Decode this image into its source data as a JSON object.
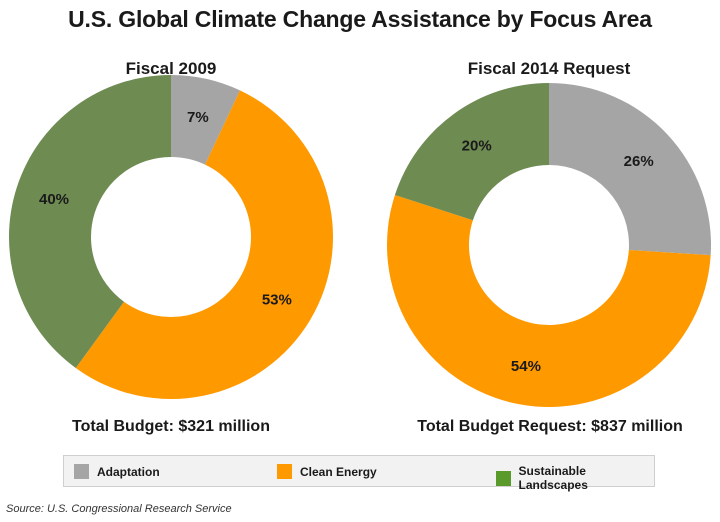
{
  "title": "U.S. Global Climate Change Assistance by Focus Area",
  "colors": {
    "Adaptation": "#a5a5a5",
    "Clean Energy": "#ff9900",
    "Sustainable Landscapes": "#6e8b52",
    "legend_Sustainable Landscapes": "#5a9a2a"
  },
  "chart_data": [
    {
      "type": "pie",
      "donut": true,
      "title": "Fiscal 2009",
      "categories": [
        "Adaptation",
        "Clean Energy",
        "Sustainable Landscapes"
      ],
      "values": [
        7,
        53,
        40
      ],
      "labels": [
        "7%",
        "53%",
        "40%"
      ],
      "annotation": "Total Budget: $321 million"
    },
    {
      "type": "pie",
      "donut": true,
      "title": "Fiscal 2014 Request",
      "categories": [
        "Adaptation",
        "Clean Energy",
        "Sustainable Landscapes"
      ],
      "values": [
        26,
        54,
        20
      ],
      "labels": [
        "26%",
        "54%",
        "20%"
      ],
      "annotation": "Total Budget Request: $837 million"
    }
  ],
  "legend": {
    "items": [
      "Adaptation",
      "Clean Energy",
      "Sustainable Landscapes"
    ]
  },
  "source": "Source: U.S. Congressional Research Service"
}
